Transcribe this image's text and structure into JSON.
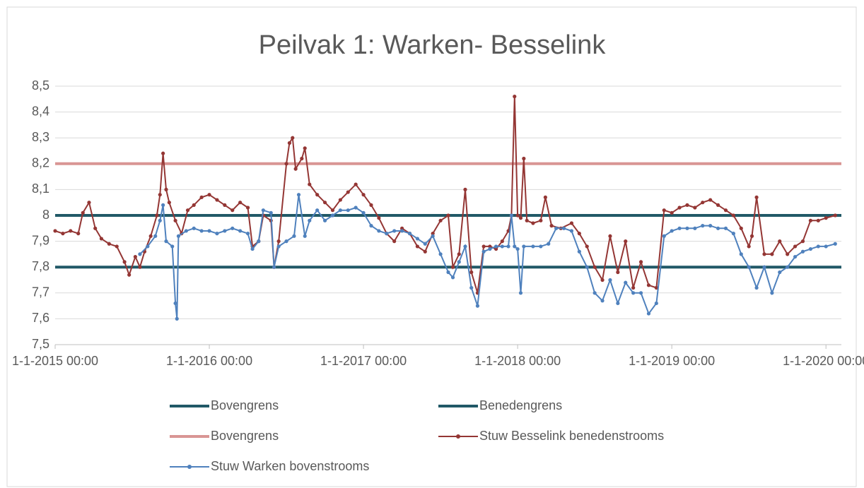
{
  "chart_data": {
    "type": "line",
    "title": "Peilvak 1: Warken- Besselink",
    "xlim": [
      2015,
      2020.1
    ],
    "xticks": [
      {
        "value": 2015,
        "label": "1-1-2015 00:00"
      },
      {
        "value": 2016,
        "label": "1-1-2016 00:00"
      },
      {
        "value": 2017,
        "label": "1-1-2017 00:00"
      },
      {
        "value": 2018,
        "label": "1-1-2018 00:00"
      },
      {
        "value": 2019,
        "label": "1-1-2019 00:00"
      },
      {
        "value": 2020,
        "label": "1-1-2020 00:00"
      }
    ],
    "ylim": [
      7.5,
      8.5
    ],
    "yticks": [
      {
        "value": 7.5,
        "label": "7,5"
      },
      {
        "value": 7.6,
        "label": "7,6"
      },
      {
        "value": 7.7,
        "label": "7,7"
      },
      {
        "value": 7.8,
        "label": "7,8"
      },
      {
        "value": 7.9,
        "label": "7,9"
      },
      8,
      {
        "value": 8.1,
        "label": "8,1"
      },
      {
        "value": 8.2,
        "label": "8,2"
      },
      {
        "value": 8.3,
        "label": "8,3"
      },
      {
        "value": 8.4,
        "label": "8,4"
      },
      {
        "value": 8.5,
        "label": "8,5"
      }
    ],
    "grid": true,
    "legend": "bottom",
    "series": [
      {
        "name": "Bovengrens",
        "color": "#215967",
        "marker": false,
        "x": [
          2015,
          2020.1
        ],
        "values": [
          8,
          8
        ]
      },
      {
        "name": "Benedengrens",
        "color": "#215967",
        "marker": false,
        "x": [
          2015,
          2020.1
        ],
        "values": [
          7.8,
          7.8
        ]
      },
      {
        "name": "Bovengrens",
        "color": "#d99594",
        "marker": false,
        "x": [
          2015,
          2020.1
        ],
        "values": [
          8.2,
          8.2
        ]
      },
      {
        "name": "Stuw Besselink benedenstrooms",
        "color": "#943634",
        "marker": true,
        "x": [
          2015.0,
          2015.05,
          2015.1,
          2015.15,
          2015.18,
          2015.22,
          2015.26,
          2015.3,
          2015.35,
          2015.4,
          2015.45,
          2015.48,
          2015.52,
          2015.55,
          2015.58,
          2015.62,
          2015.66,
          2015.68,
          2015.7,
          2015.72,
          2015.74,
          2015.78,
          2015.82,
          2015.86,
          2015.9,
          2015.95,
          2016.0,
          2016.05,
          2016.1,
          2016.15,
          2016.2,
          2016.25,
          2016.28,
          2016.32,
          2016.35,
          2016.4,
          2016.42,
          2016.45,
          2016.5,
          2016.52,
          2016.54,
          2016.56,
          2016.6,
          2016.62,
          2016.65,
          2016.7,
          2016.75,
          2016.8,
          2016.85,
          2016.9,
          2016.95,
          2017.0,
          2017.05,
          2017.1,
          2017.15,
          2017.2,
          2017.25,
          2017.3,
          2017.35,
          2017.4,
          2017.45,
          2017.5,
          2017.55,
          2017.58,
          2017.62,
          2017.66,
          2017.7,
          2017.74,
          2017.78,
          2017.82,
          2017.86,
          2017.9,
          2017.94,
          2017.96,
          2017.98,
          2018.0,
          2018.02,
          2018.04,
          2018.06,
          2018.1,
          2018.15,
          2018.18,
          2018.22,
          2018.28,
          2018.35,
          2018.4,
          2018.45,
          2018.5,
          2018.55,
          2018.6,
          2018.65,
          2018.7,
          2018.75,
          2018.8,
          2018.85,
          2018.9,
          2018.95,
          2019.0,
          2019.05,
          2019.1,
          2019.15,
          2019.2,
          2019.25,
          2019.3,
          2019.35,
          2019.4,
          2019.45,
          2019.5,
          2019.52,
          2019.55,
          2019.6,
          2019.65,
          2019.7,
          2019.75,
          2019.8,
          2019.85,
          2019.9,
          2019.95,
          2020.0,
          2020.06
        ],
        "values": [
          7.94,
          7.93,
          7.94,
          7.93,
          8.01,
          8.05,
          7.95,
          7.91,
          7.89,
          7.88,
          7.82,
          7.77,
          7.84,
          7.8,
          7.86,
          7.92,
          8.0,
          8.08,
          8.24,
          8.1,
          8.05,
          7.98,
          7.93,
          8.02,
          8.04,
          8.07,
          8.08,
          8.06,
          8.04,
          8.02,
          8.05,
          8.03,
          7.88,
          7.9,
          8.0,
          7.98,
          7.8,
          7.9,
          8.2,
          8.28,
          8.3,
          8.18,
          8.22,
          8.26,
          8.12,
          8.08,
          8.05,
          8.02,
          8.06,
          8.09,
          8.12,
          8.08,
          8.04,
          7.99,
          7.93,
          7.9,
          7.95,
          7.93,
          7.88,
          7.86,
          7.93,
          7.98,
          8.0,
          7.8,
          7.85,
          8.1,
          7.78,
          7.7,
          7.88,
          7.88,
          7.87,
          7.9,
          7.94,
          8.0,
          8.46,
          8.0,
          7.99,
          8.22,
          7.98,
          7.97,
          7.98,
          8.07,
          7.96,
          7.95,
          7.97,
          7.93,
          7.88,
          7.8,
          7.75,
          7.92,
          7.78,
          7.9,
          7.72,
          7.82,
          7.73,
          7.72,
          8.02,
          8.01,
          8.03,
          8.04,
          8.03,
          8.05,
          8.06,
          8.04,
          8.02,
          8.0,
          7.95,
          7.88,
          7.92,
          8.07,
          7.85,
          7.85,
          7.9,
          7.85,
          7.88,
          7.9,
          7.98,
          7.98,
          7.99,
          8.0
        ]
      },
      {
        "name": "Stuw Warken bovenstrooms",
        "color": "#4f81bd",
        "marker": true,
        "x": [
          2015.55,
          2015.6,
          2015.65,
          2015.68,
          2015.7,
          2015.72,
          2015.76,
          2015.78,
          2015.79,
          2015.8,
          2015.85,
          2015.9,
          2015.95,
          2016.0,
          2016.05,
          2016.1,
          2016.15,
          2016.2,
          2016.25,
          2016.28,
          2016.32,
          2016.35,
          2016.4,
          2016.42,
          2016.45,
          2016.5,
          2016.55,
          2016.58,
          2016.62,
          2016.65,
          2016.7,
          2016.75,
          2016.8,
          2016.85,
          2016.9,
          2016.95,
          2017.0,
          2017.05,
          2017.1,
          2017.15,
          2017.2,
          2017.25,
          2017.3,
          2017.35,
          2017.4,
          2017.45,
          2017.5,
          2017.55,
          2017.58,
          2017.62,
          2017.66,
          2017.7,
          2017.74,
          2017.78,
          2017.82,
          2017.86,
          2017.9,
          2017.94,
          2017.96,
          2017.98,
          2018.0,
          2018.02,
          2018.04,
          2018.1,
          2018.15,
          2018.2,
          2018.25,
          2018.3,
          2018.35,
          2018.4,
          2018.45,
          2018.5,
          2018.55,
          2018.6,
          2018.65,
          2018.7,
          2018.75,
          2018.8,
          2018.85,
          2018.9,
          2018.95,
          2019.0,
          2019.05,
          2019.1,
          2019.15,
          2019.2,
          2019.25,
          2019.3,
          2019.35,
          2019.4,
          2019.45,
          2019.5,
          2019.55,
          2019.6,
          2019.65,
          2019.7,
          2019.75,
          2019.8,
          2019.85,
          2019.9,
          2019.95,
          2020.0,
          2020.06
        ],
        "values": [
          7.85,
          7.88,
          7.92,
          7.98,
          8.04,
          7.9,
          7.88,
          7.66,
          7.6,
          7.92,
          7.94,
          7.95,
          7.94,
          7.94,
          7.93,
          7.94,
          7.95,
          7.94,
          7.93,
          7.87,
          7.9,
          8.02,
          8.01,
          7.8,
          7.88,
          7.9,
          7.92,
          8.08,
          7.92,
          7.98,
          8.02,
          7.98,
          8.0,
          8.02,
          8.02,
          8.03,
          8.01,
          7.96,
          7.94,
          7.93,
          7.94,
          7.94,
          7.93,
          7.91,
          7.89,
          7.92,
          7.85,
          7.78,
          7.76,
          7.82,
          7.88,
          7.72,
          7.65,
          7.86,
          7.87,
          7.88,
          7.88,
          7.88,
          8.0,
          7.88,
          7.87,
          7.7,
          7.88,
          7.88,
          7.88,
          7.89,
          7.95,
          7.95,
          7.94,
          7.86,
          7.8,
          7.7,
          7.67,
          7.75,
          7.66,
          7.74,
          7.7,
          7.7,
          7.62,
          7.66,
          7.92,
          7.94,
          7.95,
          7.95,
          7.95,
          7.96,
          7.96,
          7.95,
          7.95,
          7.93,
          7.85,
          7.8,
          7.72,
          7.8,
          7.7,
          7.78,
          7.8,
          7.84,
          7.86,
          7.87,
          7.88,
          7.88,
          7.89
        ]
      }
    ]
  }
}
